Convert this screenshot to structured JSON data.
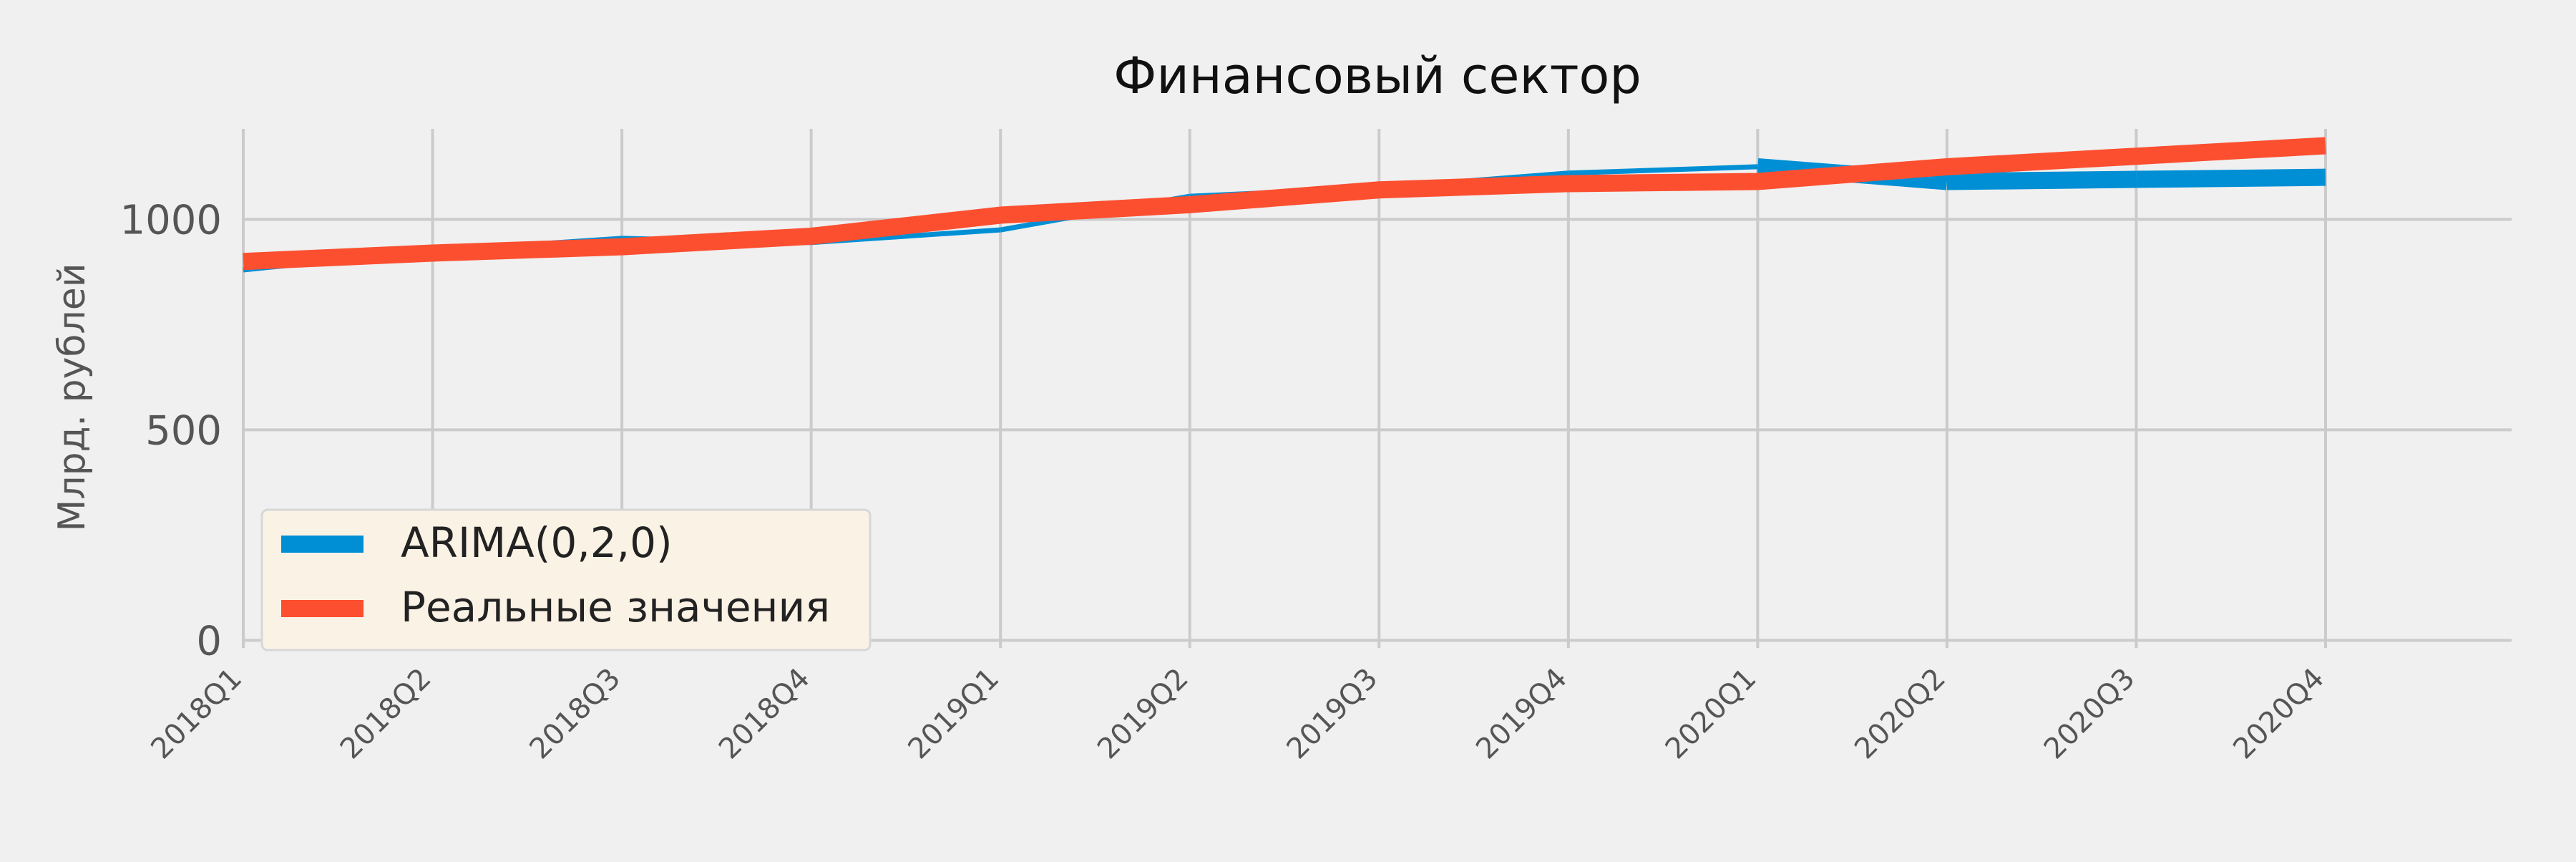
{
  "chart_data": {
    "type": "line",
    "title": "Финансовый сектор",
    "xlabel": "",
    "ylabel": "Млрд. рублей",
    "categories": [
      "2018Q1",
      "2018Q2",
      "2018Q3",
      "2018Q4",
      "2019Q1",
      "2019Q2",
      "2019Q3",
      "2019Q4",
      "2020Q1",
      "2020Q2",
      "2020Q3",
      "2020Q4"
    ],
    "yticks": [
      0,
      500,
      1000
    ],
    "ylim": [
      -18,
      1215
    ],
    "grid": true,
    "legend_position": "lower-left",
    "series": [
      {
        "name": "ARIMA(0,2,0)",
        "color": "#008fd5",
        "style": "thin-to-thick",
        "values": [
          880,
          925,
          955,
          945,
          975,
          1055,
          1075,
          1110,
          1125,
          1090,
          1095,
          1100
        ]
      },
      {
        "name": "Реальные значения",
        "color": "#fc4f30",
        "style": "thick",
        "values": [
          900,
          920,
          935,
          960,
          1010,
          1035,
          1070,
          1085,
          1090,
          1125,
          1150,
          1175
        ]
      }
    ]
  }
}
